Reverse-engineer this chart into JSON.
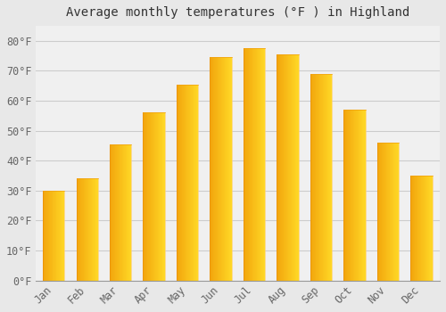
{
  "title": "Average monthly temperatures (°F ) in Highland",
  "months": [
    "Jan",
    "Feb",
    "Mar",
    "Apr",
    "May",
    "Jun",
    "Jul",
    "Aug",
    "Sep",
    "Oct",
    "Nov",
    "Dec"
  ],
  "temperatures": [
    30,
    34,
    45.5,
    56,
    65.5,
    74.5,
    77.5,
    75.5,
    69,
    57,
    46,
    35
  ],
  "bar_color_left": "#F5A623",
  "bar_color_right": "#FFD060",
  "background_color": "#e8e8e8",
  "plot_bg_color": "#f0f0f0",
  "grid_color": "#cccccc",
  "text_color": "#666666",
  "title_color": "#333333",
  "ylim": [
    0,
    85
  ],
  "yticks": [
    0,
    10,
    20,
    30,
    40,
    50,
    60,
    70,
    80
  ],
  "title_fontsize": 10,
  "tick_fontsize": 8.5,
  "bar_width": 0.65
}
